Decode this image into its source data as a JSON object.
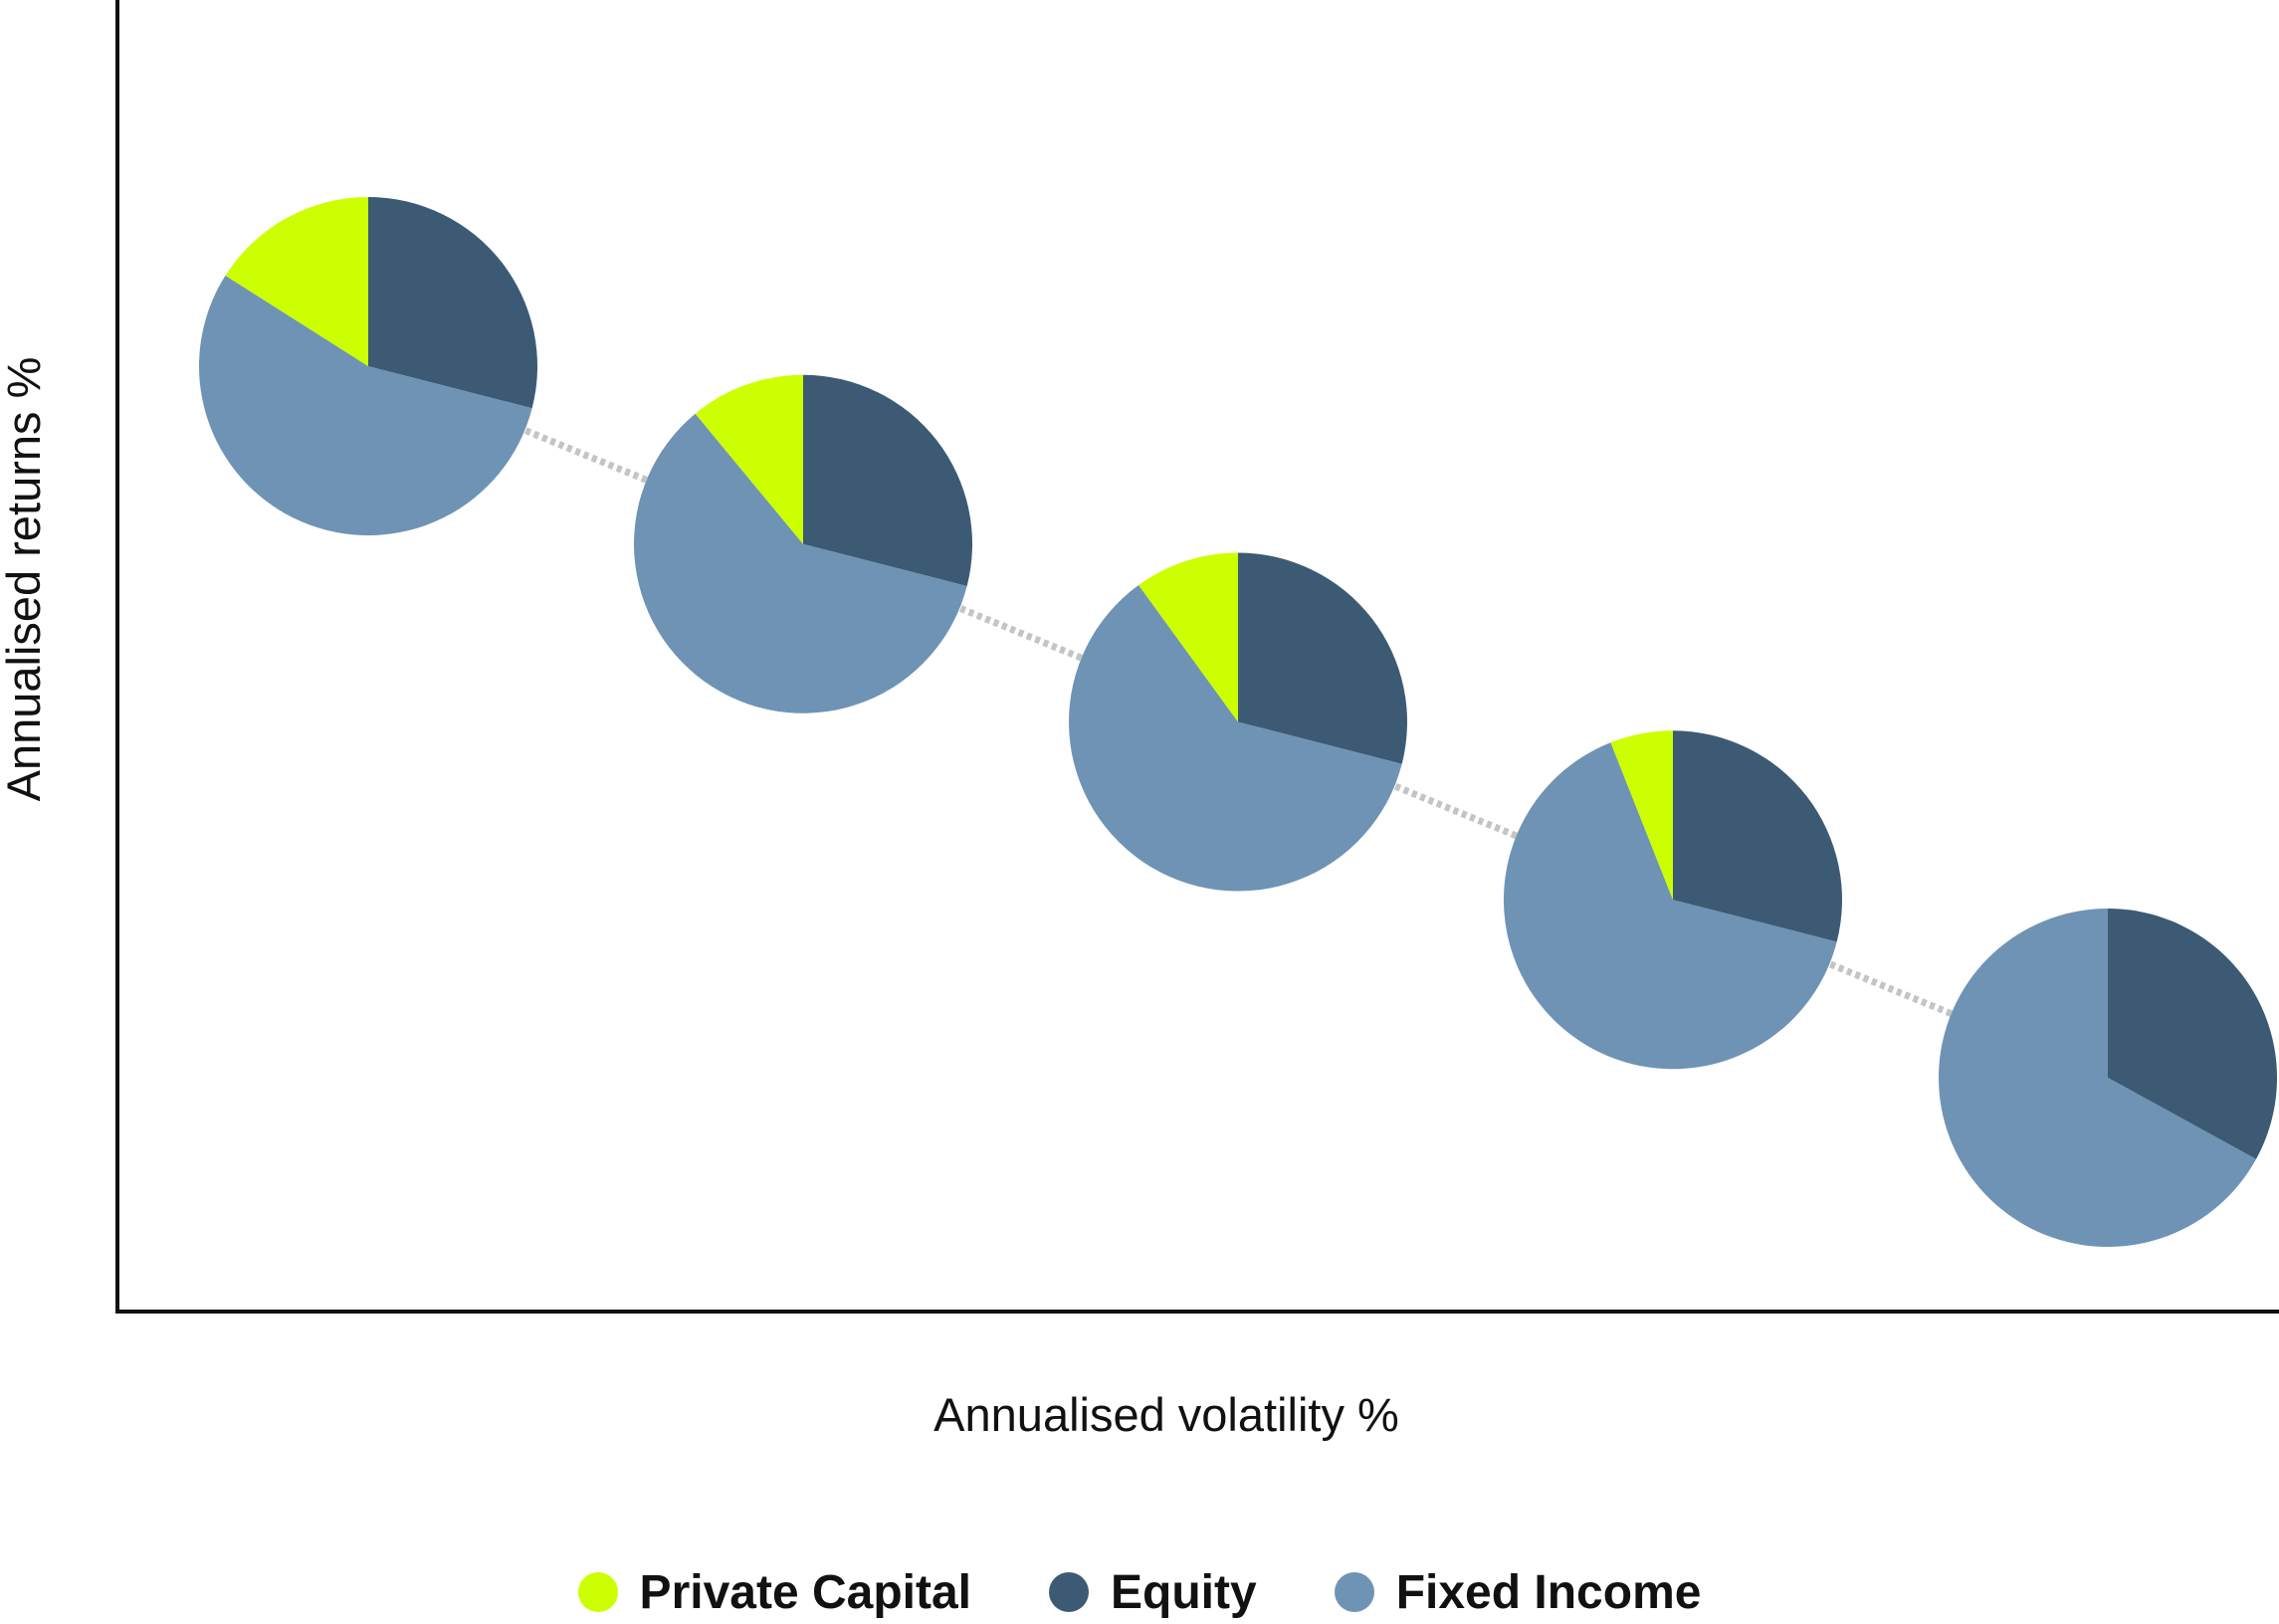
{
  "chart_data": {
    "type": "scatter",
    "marker": "pie",
    "title": "",
    "xlabel": "Annualised volatility %",
    "ylabel": "Annualised returns %",
    "ticks_shown": false,
    "grid": false,
    "connector": "dotted",
    "legend_position": "bottom",
    "categories": [
      "Private Capital",
      "Equity",
      "Fixed Income"
    ],
    "colors": {
      "Private Capital": "#ccff00",
      "Equity": "#3d5a74",
      "Fixed Income": "#6f93b4",
      "connector": "#c4c4c4",
      "axis": "#111111"
    },
    "points": [
      {
        "x": 1,
        "y": 5,
        "shares": {
          "Private Capital": 16,
          "Equity": 29,
          "Fixed Income": 55
        }
      },
      {
        "x": 2,
        "y": 4,
        "shares": {
          "Private Capital": 11,
          "Equity": 29,
          "Fixed Income": 60
        }
      },
      {
        "x": 3,
        "y": 3,
        "shares": {
          "Private Capital": 10,
          "Equity": 29,
          "Fixed Income": 61
        }
      },
      {
        "x": 4,
        "y": 2,
        "shares": {
          "Private Capital": 6,
          "Equity": 29,
          "Fixed Income": 65
        }
      },
      {
        "x": 5,
        "y": 1,
        "shares": {
          "Private Capital": 0,
          "Equity": 33,
          "Fixed Income": 67
        }
      }
    ]
  },
  "legend": {
    "items": [
      {
        "label": "Private Capital",
        "color": "#ccff00"
      },
      {
        "label": "Equity",
        "color": "#3d5a74"
      },
      {
        "label": "Fixed Income",
        "color": "#6f93b4"
      }
    ]
  }
}
